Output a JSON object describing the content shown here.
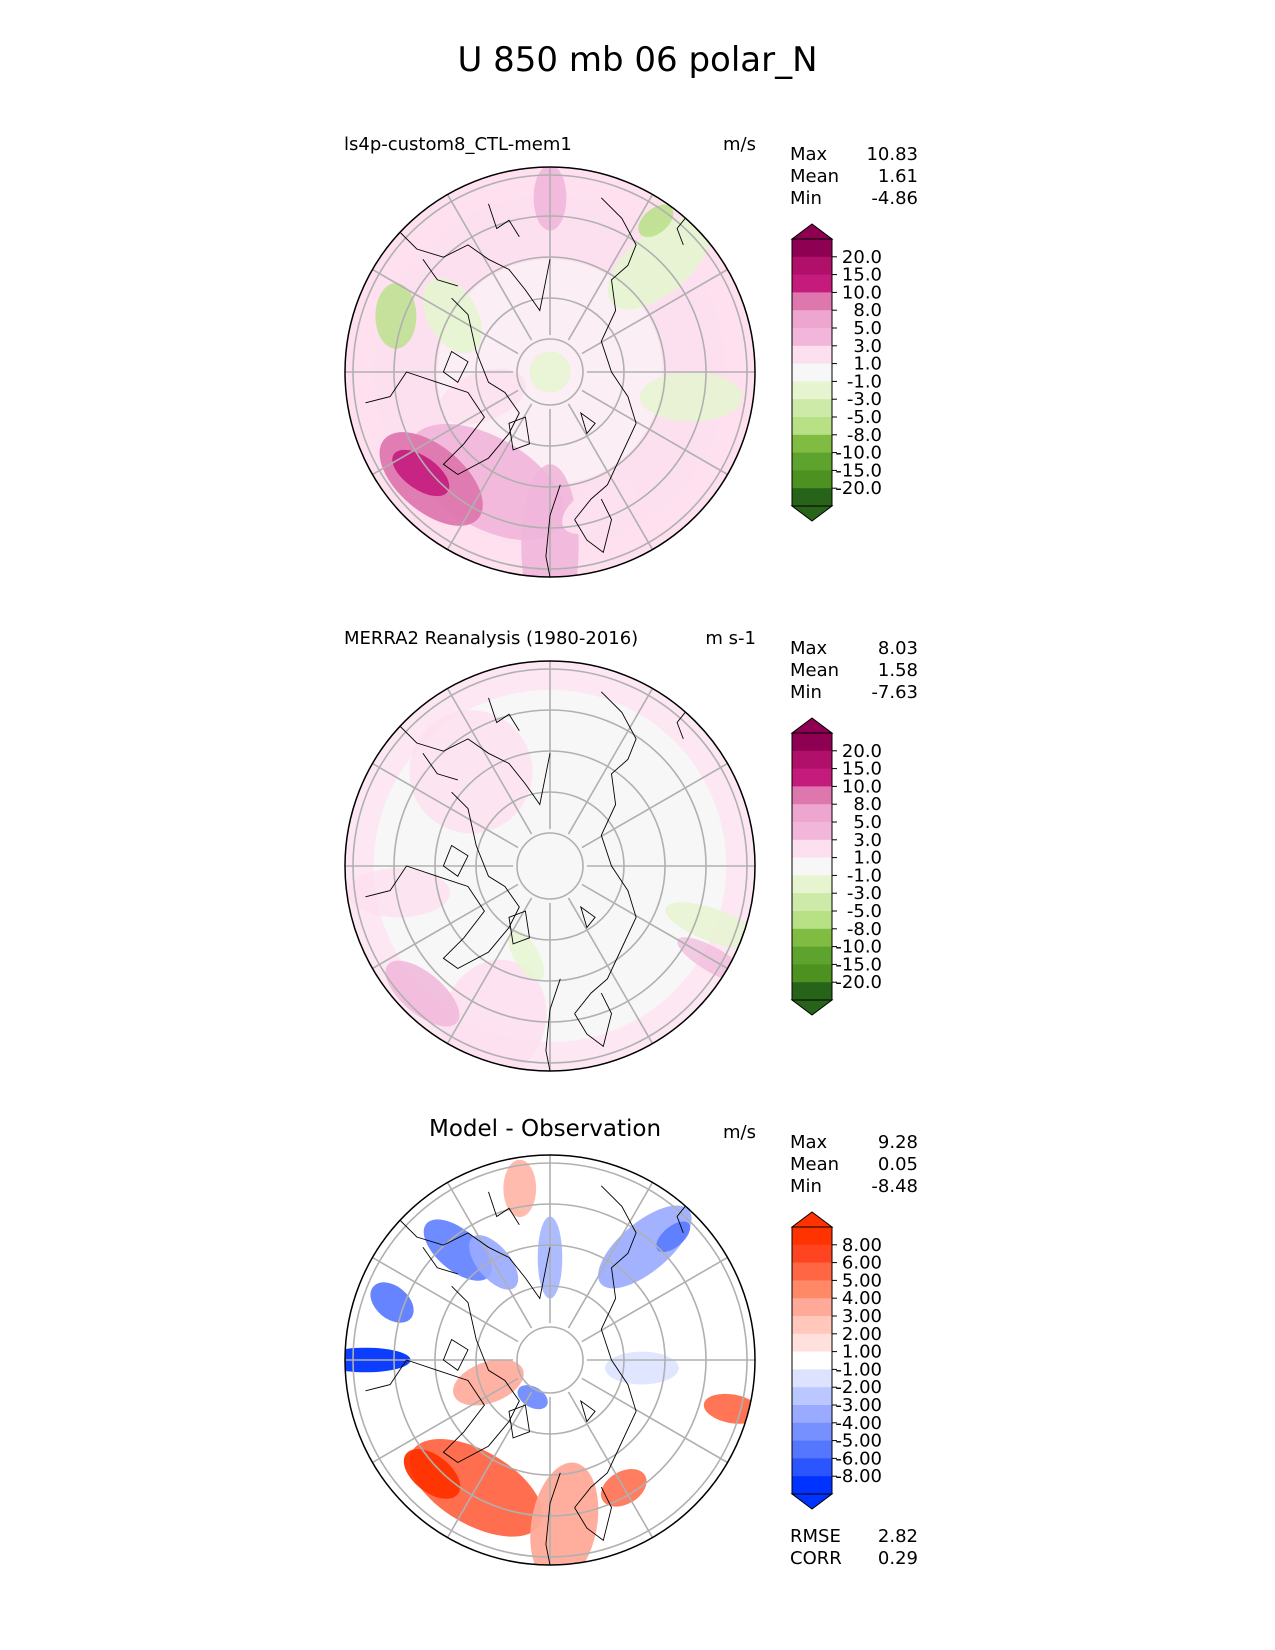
{
  "main_title": "U 850 mb 06 polar_N",
  "colors": {
    "pink_scale": [
      "#276419",
      "#4d9221",
      "#7fbc41",
      "#b8e186",
      "#e6f5d0",
      "#f7f7f7",
      "#fde0ef",
      "#f1b6da",
      "#de77ae",
      "#c51b7d",
      "#8e0152"
    ],
    "diff_scale": [
      "#0033ff",
      "#5577ff",
      "#99aaff",
      "#dde3ff",
      "#ffffff",
      "#ffe0dd",
      "#ffaa99",
      "#ff6644",
      "#ff3300"
    ],
    "grid": "#b0b0b0",
    "coast": "#000000"
  },
  "panels": [
    {
      "title": "ls4p-custom8_CTL-mem1",
      "units": "m/s",
      "stats": [
        {
          "label": "Max",
          "value": "10.83"
        },
        {
          "label": "Mean",
          "value": "1.61"
        },
        {
          "label": "Min",
          "value": "-4.86"
        }
      ],
      "colorbar_ticks": [
        "20.0",
        "15.0",
        "10.0",
        "8.0",
        "5.0",
        "3.0",
        "1.0",
        "-1.0",
        "-3.0",
        "-5.0",
        "-8.0",
        "-10.0",
        "-15.0",
        "-20.0"
      ]
    },
    {
      "title": "MERRA2 Reanalysis (1980-2016)",
      "units": "m s-1",
      "stats": [
        {
          "label": "Max",
          "value": "8.03"
        },
        {
          "label": "Mean",
          "value": "1.58"
        },
        {
          "label": "Min",
          "value": "-7.63"
        }
      ],
      "colorbar_ticks": [
        "20.0",
        "15.0",
        "10.0",
        "8.0",
        "5.0",
        "3.0",
        "1.0",
        "-1.0",
        "-3.0",
        "-5.0",
        "-8.0",
        "-10.0",
        "-15.0",
        "-20.0"
      ]
    },
    {
      "title": "Model - Observation",
      "units": "m/s",
      "stats": [
        {
          "label": "Max",
          "value": "9.28"
        },
        {
          "label": "Mean",
          "value": "0.05"
        },
        {
          "label": "Min",
          "value": "-8.48"
        }
      ],
      "colorbar_ticks": [
        "8.00",
        "6.00",
        "5.00",
        "4.00",
        "3.00",
        "2.00",
        "1.00",
        "-1.00",
        "-2.00",
        "-3.00",
        "-4.00",
        "-5.00",
        "-6.00",
        "-8.00"
      ],
      "metrics": [
        {
          "label": "RMSE",
          "value": "2.82"
        },
        {
          "label": "CORR",
          "value": "0.29"
        }
      ]
    }
  ],
  "chart_data": [
    {
      "type": "heatmap",
      "projection": "north polar stereographic",
      "title": "ls4p-custom8_CTL-mem1",
      "units": "m/s",
      "variable": "U 850 mb",
      "summary": {
        "max": 10.83,
        "mean": 1.61,
        "min": -4.86
      },
      "levels": [
        -20,
        -15,
        -10,
        -8,
        -5,
        -3,
        -1,
        1,
        3,
        5,
        8,
        10,
        15,
        20
      ],
      "extend": "both"
    },
    {
      "type": "heatmap",
      "projection": "north polar stereographic",
      "title": "MERRA2 Reanalysis (1980-2016)",
      "units": "m s-1",
      "variable": "U 850 mb",
      "summary": {
        "max": 8.03,
        "mean": 1.58,
        "min": -7.63
      },
      "levels": [
        -20,
        -15,
        -10,
        -8,
        -5,
        -3,
        -1,
        1,
        3,
        5,
        8,
        10,
        15,
        20
      ],
      "extend": "both"
    },
    {
      "type": "heatmap",
      "projection": "north polar stereographic",
      "title": "Model - Observation",
      "units": "m/s",
      "variable": "U 850 mb difference",
      "summary": {
        "max": 9.28,
        "mean": 0.05,
        "min": -8.48,
        "rmse": 2.82,
        "corr": 0.29
      },
      "levels": [
        -8,
        -6,
        -5,
        -4,
        -3,
        -2,
        -1,
        1,
        2,
        3,
        4,
        5,
        6,
        8
      ],
      "extend": "both"
    }
  ]
}
